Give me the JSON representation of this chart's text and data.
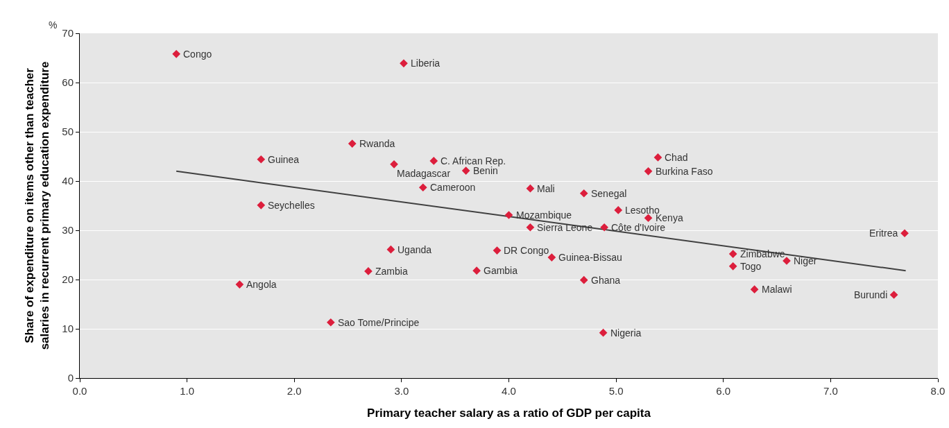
{
  "chart_data": {
    "type": "scatter",
    "xlabel": "Primary teacher salary as a ratio of GDP per capita",
    "ylabel": "Share of expenditure on items other than teacher\nsalaries in recurrent primary education expenditure",
    "xlim": [
      0,
      8
    ],
    "ylim": [
      0,
      70
    ],
    "xticks": [
      {
        "value": 0,
        "label": "0.0"
      },
      {
        "value": 1,
        "label": "1.0"
      },
      {
        "value": 2,
        "label": "2.0"
      },
      {
        "value": 3,
        "label": "3.0"
      },
      {
        "value": 4,
        "label": "4.0"
      },
      {
        "value": 5,
        "label": "5.0"
      },
      {
        "value": 6,
        "label": "6.0"
      },
      {
        "value": 7,
        "label": "7.0"
      },
      {
        "value": 8,
        "label": "8.0"
      }
    ],
    "yticks": [
      0,
      10,
      20,
      30,
      40,
      50,
      60,
      70
    ],
    "grid": "y",
    "marker": "diamond",
    "series": [
      {
        "color": "#dc1e3c",
        "x": [
          0.9,
          3.02,
          2.54,
          1.69,
          3.3,
          2.93,
          3.6,
          5.39,
          5.3,
          3.2,
          4.2,
          4.7,
          1.69,
          5.02,
          5.3,
          4.0,
          4.2,
          4.89,
          7.69,
          2.9,
          3.89,
          6.09,
          4.4,
          6.59,
          6.09,
          2.69,
          3.7,
          4.7,
          1.49,
          6.29,
          7.59,
          2.34,
          4.88
        ],
        "values": [
          65.8,
          63.9,
          47.6,
          44.4,
          44.1,
          43.4,
          42.1,
          44.8,
          42.0,
          38.7,
          38.5,
          37.5,
          35.1,
          34.1,
          32.5,
          33.1,
          30.6,
          30.6,
          29.4,
          26.1,
          25.9,
          25.2,
          24.5,
          23.8,
          22.7,
          21.7,
          21.8,
          19.9,
          19.0,
          18.0,
          16.9,
          11.3,
          9.2
        ]
      },
      {
        "type": "line",
        "color": "#404040",
        "marker": "none",
        "x": [
          0.9,
          7.7
        ],
        "values": [
          42.0,
          21.8
        ]
      }
    ],
    "annotations": [
      "%",
      {
        "text": "Congo",
        "x": 0.9,
        "y": 65.8
      },
      {
        "text": "Liberia",
        "x": 3.02,
        "y": 63.9
      },
      {
        "text": "Rwanda",
        "x": 2.54,
        "y": 47.6
      },
      {
        "text": "Guinea",
        "x": 1.69,
        "y": 44.4
      },
      {
        "text": "C. African Rep.",
        "x": 3.3,
        "y": 44.1
      },
      {
        "text": "Madagascar",
        "x": 2.93,
        "y": 43.4
      },
      {
        "text": "Benin",
        "x": 3.6,
        "y": 42.1
      },
      {
        "text": "Chad",
        "x": 5.39,
        "y": 44.8
      },
      {
        "text": "Burkina Faso",
        "x": 5.3,
        "y": 42.0
      },
      {
        "text": "Cameroon",
        "x": 3.2,
        "y": 38.7
      },
      {
        "text": "Mali",
        "x": 4.2,
        "y": 38.5
      },
      {
        "text": "Senegal",
        "x": 4.7,
        "y": 37.5
      },
      {
        "text": "Seychelles",
        "x": 1.69,
        "y": 35.1
      },
      {
        "text": "Lesotho",
        "x": 5.02,
        "y": 34.1
      },
      {
        "text": "Kenya",
        "x": 5.3,
        "y": 32.5
      },
      {
        "text": "Mozambique",
        "x": 4.0,
        "y": 33.1
      },
      {
        "text": "Sierra Leone",
        "x": 4.2,
        "y": 30.6
      },
      {
        "text": "Côte d'Ivoire",
        "x": 4.89,
        "y": 30.6
      },
      {
        "text": "Eritrea",
        "x": 7.69,
        "y": 29.4
      },
      {
        "text": "Uganda",
        "x": 2.9,
        "y": 26.1
      },
      {
        "text": "DR Congo",
        "x": 3.89,
        "y": 25.9
      },
      {
        "text": "Zimbabwe",
        "x": 6.09,
        "y": 25.2
      },
      {
        "text": "Guinea-Bissau",
        "x": 4.4,
        "y": 24.5
      },
      {
        "text": "Niger",
        "x": 6.59,
        "y": 23.8
      },
      {
        "text": "Togo",
        "x": 6.09,
        "y": 22.7
      },
      {
        "text": "Zambia",
        "x": 2.69,
        "y": 21.7
      },
      {
        "text": "Gambia",
        "x": 3.7,
        "y": 21.8
      },
      {
        "text": "Ghana",
        "x": 4.7,
        "y": 19.9
      },
      {
        "text": "Angola",
        "x": 1.49,
        "y": 19.0
      },
      {
        "text": "Malawi",
        "x": 6.29,
        "y": 18.0
      },
      {
        "text": "Burundi",
        "x": 7.59,
        "y": 16.9
      },
      {
        "text": "Sao Tome/Principe",
        "x": 2.34,
        "y": 11.3
      },
      {
        "text": "Nigeria",
        "x": 4.88,
        "y": 9.2
      }
    ]
  }
}
